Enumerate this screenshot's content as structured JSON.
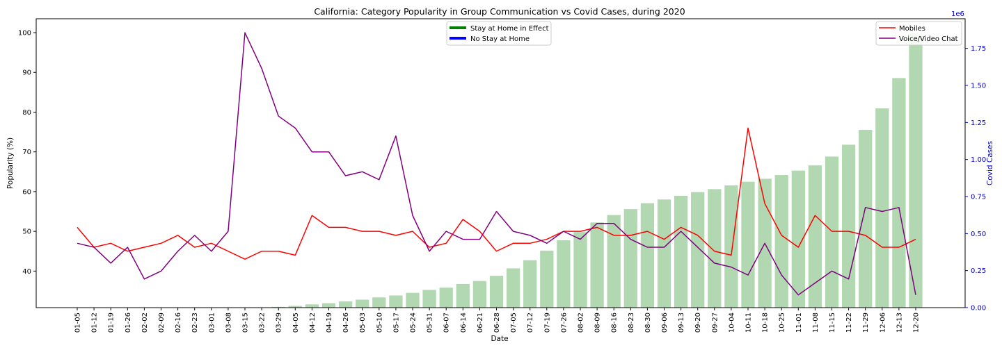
{
  "chart_data": {
    "type": "bar+line",
    "title": "California: Category Popularity in Group Communication vs Covid Cases, during 2020",
    "xlabel": "Date",
    "ylabel_left": "Popularity (%)",
    "ylabel_right": "Covid Cases",
    "right_axis_multiplier": "1e6",
    "categories": [
      "01-05",
      "01-12",
      "01-19",
      "01-26",
      "02-02",
      "02-09",
      "02-16",
      "02-23",
      "03-01",
      "03-08",
      "03-15",
      "03-22",
      "03-29",
      "04-05",
      "04-12",
      "04-19",
      "04-26",
      "05-03",
      "05-10",
      "05-17",
      "05-24",
      "05-31",
      "06-07",
      "06-14",
      "06-21",
      "06-28",
      "07-05",
      "07-12",
      "07-19",
      "07-26",
      "08-02",
      "08-09",
      "08-16",
      "08-23",
      "08-30",
      "09-06",
      "09-13",
      "09-20",
      "09-27",
      "10-04",
      "10-11",
      "10-18",
      "10-25",
      "11-01",
      "11-08",
      "11-15",
      "11-22",
      "11-29",
      "12-06",
      "12-13",
      "12-20"
    ],
    "ylim_left": [
      30.8,
      103.5
    ],
    "yticks_left": [
      40,
      50,
      60,
      70,
      80,
      90,
      100
    ],
    "ylim_right": [
      0,
      1.95
    ],
    "yticks_right": [
      0.0,
      0.25,
      0.5,
      0.75,
      1.0,
      1.25,
      1.5,
      1.75
    ],
    "ytick_labels_right": [
      "0.00",
      "0.25",
      "0.50",
      "0.75",
      "1.00",
      "1.25",
      "1.50",
      "1.75"
    ],
    "covid_cases_millions": [
      0,
      0,
      0,
      0,
      0,
      0,
      0,
      0,
      0,
      0,
      0.001,
      0.002,
      0.005,
      0.012,
      0.022,
      0.03,
      0.042,
      0.054,
      0.069,
      0.082,
      0.1,
      0.12,
      0.135,
      0.16,
      0.18,
      0.215,
      0.265,
      0.32,
      0.385,
      0.455,
      0.51,
      0.575,
      0.625,
      0.665,
      0.705,
      0.73,
      0.755,
      0.78,
      0.8,
      0.825,
      0.85,
      0.87,
      0.895,
      0.925,
      0.96,
      1.02,
      1.1,
      1.2,
      1.345,
      1.55,
      1.85
    ],
    "series": [
      {
        "name": "Mobiles",
        "color": "#ff0000",
        "values": [
          51,
          46,
          47,
          45,
          46,
          47,
          49,
          46,
          47,
          45,
          43,
          45,
          45,
          44,
          54,
          51,
          51,
          50,
          50,
          49,
          50,
          46,
          47,
          53,
          50,
          45,
          47,
          47,
          48,
          50,
          50,
          51,
          49,
          49,
          50,
          48,
          51,
          49,
          45,
          44,
          76,
          57,
          49,
          46,
          54,
          50,
          50,
          49,
          46,
          46,
          48
        ]
      },
      {
        "name": "Voice/Video Chat",
        "color": "#800080",
        "values": [
          47,
          46,
          42,
          46,
          38,
          40,
          45,
          49,
          45,
          50,
          100,
          91,
          79,
          76,
          70,
          70,
          64,
          65,
          63,
          74,
          54,
          45,
          50,
          48,
          48,
          55,
          50,
          49,
          47,
          50,
          48,
          52,
          52,
          48,
          46,
          46,
          50,
          46,
          42,
          41,
          39,
          47,
          39,
          34,
          37,
          40,
          38,
          56,
          55,
          56,
          34
        ]
      }
    ],
    "bar_color": "#b2d8b2",
    "legends": {
      "center_top": [
        {
          "label": "Stay at Home in Effect",
          "color": "#008000"
        },
        {
          "label": "No Stay at Home",
          "color": "#0000ff"
        }
      ],
      "top_right": [
        {
          "label": "Mobiles",
          "color": "#ff0000"
        },
        {
          "label": "Voice/Video Chat",
          "color": "#800080"
        }
      ]
    },
    "right_axis_color": "#0000cc",
    "grid": false
  }
}
